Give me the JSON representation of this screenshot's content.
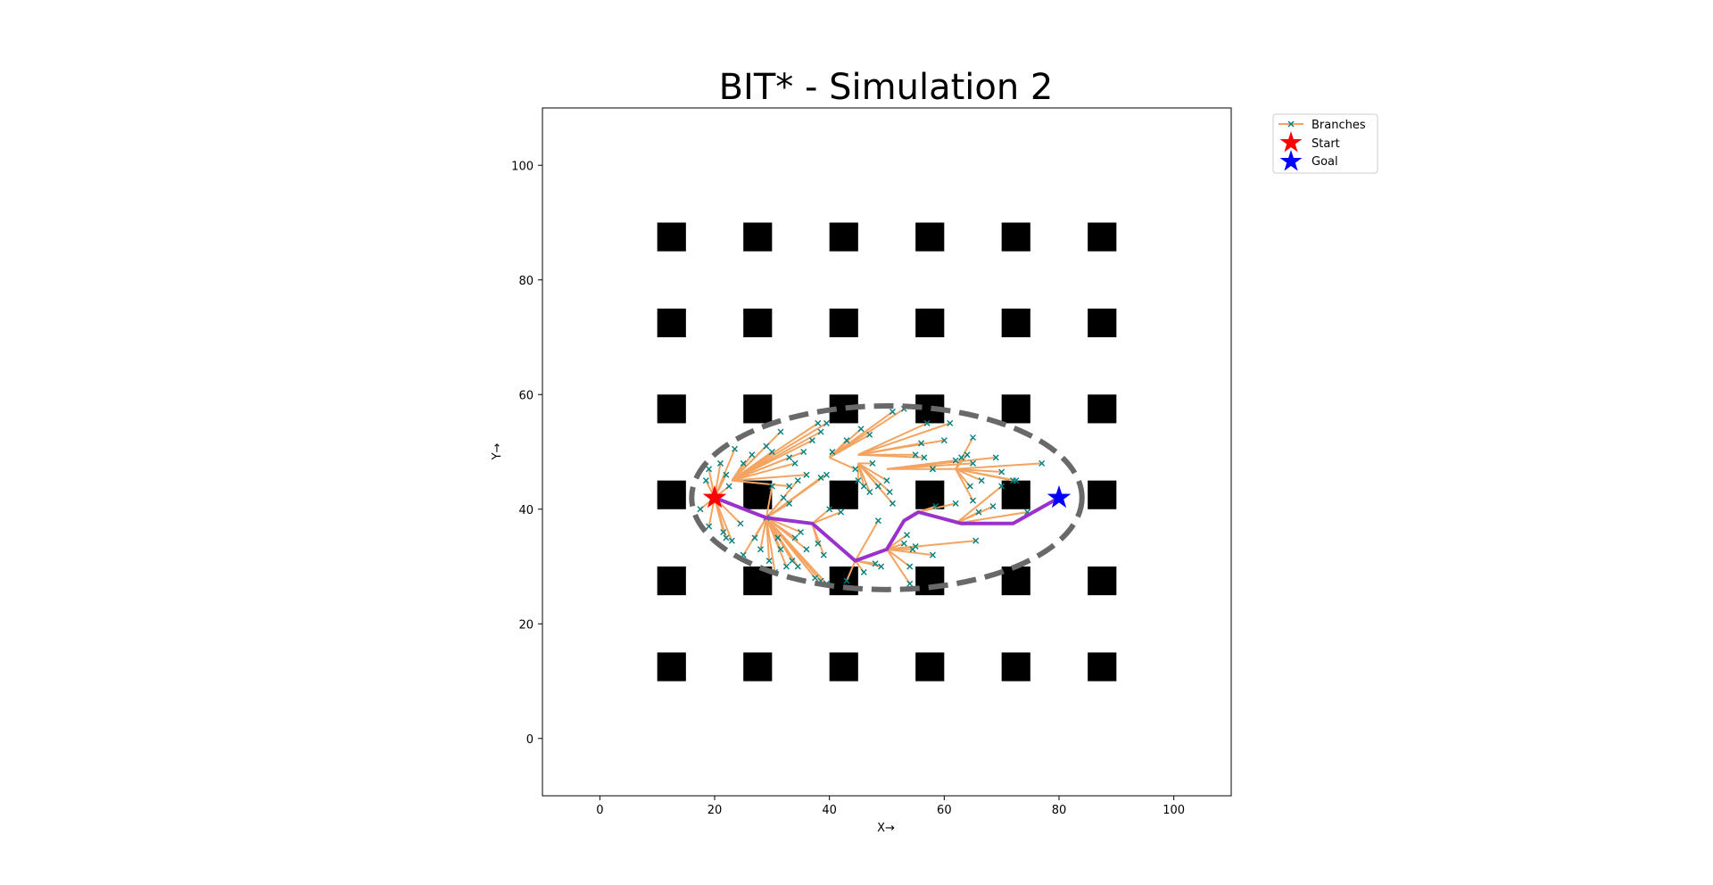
{
  "chart_data": {
    "type": "scatter",
    "title": "BIT* - Simulation 2",
    "xlabel": "X→",
    "ylabel": "Y→",
    "xlim": [
      -10,
      110
    ],
    "ylim": [
      -10,
      110
    ],
    "xticks": [
      0,
      20,
      40,
      60,
      80,
      100
    ],
    "yticks": [
      0,
      20,
      40,
      60,
      80,
      100
    ],
    "grid": false,
    "legend_position": "outside-top-right",
    "colors": {
      "branch": "#f4a460",
      "sample": "#008080",
      "path": "#9932cc",
      "ellipse": "#696969",
      "obstacle": "#000000",
      "start": "#ff0000",
      "goal": "#0000ff"
    },
    "legend": [
      {
        "label": "Branches",
        "marker": "branch"
      },
      {
        "label": "Start",
        "marker": "start"
      },
      {
        "label": "Goal",
        "marker": "goal"
      }
    ],
    "obstacle_centers_x": [
      12.5,
      27.5,
      42.5,
      57.5,
      72.5,
      87.5
    ],
    "obstacle_centers_y": [
      12.5,
      27.5,
      42.5,
      57.5,
      72.5,
      87.5
    ],
    "obstacle_size": 5,
    "start": [
      20,
      42
    ],
    "goal": [
      80,
      42
    ],
    "ellipse": {
      "center": [
        50,
        42
      ],
      "rx": 34,
      "ry": 16
    },
    "path": [
      [
        20,
        42
      ],
      [
        29,
        38.5
      ],
      [
        37,
        37.5
      ],
      [
        44.5,
        31
      ],
      [
        50,
        33
      ],
      [
        53,
        38
      ],
      [
        55.5,
        39.5
      ],
      [
        63,
        37.5
      ],
      [
        72,
        37.5
      ],
      [
        80,
        42
      ]
    ],
    "branches": [
      [
        [
          20,
          42
        ],
        [
          18.5,
          45
        ]
      ],
      [
        [
          20,
          42
        ],
        [
          19,
          47
        ]
      ],
      [
        [
          20,
          42
        ],
        [
          21,
          48
        ]
      ],
      [
        [
          20,
          42
        ],
        [
          23.5,
          50.5
        ]
      ],
      [
        [
          20,
          42
        ],
        [
          22,
          46
        ]
      ],
      [
        [
          20,
          42
        ],
        [
          22.5,
          44
        ]
      ],
      [
        [
          20,
          42
        ],
        [
          17.5,
          40
        ]
      ],
      [
        [
          20,
          42
        ],
        [
          19,
          37
        ]
      ],
      [
        [
          20,
          42
        ],
        [
          22,
          35
        ]
      ],
      [
        [
          20,
          42
        ],
        [
          23,
          34.5
        ]
      ],
      [
        [
          20,
          42
        ],
        [
          21.5,
          36
        ]
      ],
      [
        [
          20,
          42
        ],
        [
          24.5,
          37.5
        ]
      ],
      [
        [
          20,
          42
        ],
        [
          29,
          38.5
        ]
      ],
      [
        [
          23,
          45
        ],
        [
          25,
          48
        ]
      ],
      [
        [
          23,
          45
        ],
        [
          26.5,
          49.5
        ]
      ],
      [
        [
          23,
          45
        ],
        [
          29,
          51
        ]
      ],
      [
        [
          23,
          45
        ],
        [
          30,
          50
        ]
      ],
      [
        [
          23,
          45
        ],
        [
          31.5,
          53.5
        ]
      ],
      [
        [
          23,
          45
        ],
        [
          33,
          49
        ]
      ],
      [
        [
          23,
          45
        ],
        [
          34,
          48
        ]
      ],
      [
        [
          23,
          45
        ],
        [
          35.5,
          50
        ]
      ],
      [
        [
          23,
          45
        ],
        [
          37,
          52
        ]
      ],
      [
        [
          23,
          45
        ],
        [
          38,
          55
        ]
      ],
      [
        [
          23,
          45
        ],
        [
          38.5,
          53.5
        ]
      ],
      [
        [
          23,
          45
        ],
        [
          39.5,
          55
        ]
      ],
      [
        [
          23,
          45
        ],
        [
          36,
          46
        ]
      ],
      [
        [
          23,
          45
        ],
        [
          33,
          44
        ]
      ],
      [
        [
          29,
          38.5
        ],
        [
          30,
          44
        ]
      ],
      [
        [
          29,
          38.5
        ],
        [
          32,
          42
        ]
      ],
      [
        [
          29,
          38.5
        ],
        [
          33,
          41
        ]
      ],
      [
        [
          29,
          38.5
        ],
        [
          34.5,
          45
        ]
      ],
      [
        [
          29,
          38.5
        ],
        [
          38.5,
          45.5
        ]
      ],
      [
        [
          29,
          38.5
        ],
        [
          39.5,
          46
        ]
      ],
      [
        [
          29,
          38.5
        ],
        [
          27,
          35
        ]
      ],
      [
        [
          29,
          38.5
        ],
        [
          28,
          33
        ]
      ],
      [
        [
          29,
          38.5
        ],
        [
          29.5,
          31
        ]
      ],
      [
        [
          29,
          38.5
        ],
        [
          30.5,
          29
        ]
      ],
      [
        [
          29,
          38.5
        ],
        [
          31.5,
          33
        ]
      ],
      [
        [
          29,
          38.5
        ],
        [
          32.5,
          30
        ]
      ],
      [
        [
          29,
          38.5
        ],
        [
          33.5,
          31
        ]
      ],
      [
        [
          29,
          38.5
        ],
        [
          34,
          35
        ]
      ],
      [
        [
          29,
          38.5
        ],
        [
          35,
          36
        ]
      ],
      [
        [
          29,
          38.5
        ],
        [
          36,
          33
        ]
      ],
      [
        [
          29,
          38.5
        ],
        [
          37.5,
          28
        ]
      ],
      [
        [
          29,
          38.5
        ],
        [
          38.5,
          27.5
        ]
      ],
      [
        [
          29,
          38.5
        ],
        [
          39.5,
          27
        ]
      ],
      [
        [
          29,
          38.5
        ],
        [
          34.5,
          30
        ]
      ],
      [
        [
          29,
          38.5
        ],
        [
          31,
          35
        ]
      ],
      [
        [
          29,
          38.5
        ],
        [
          25,
          32
        ]
      ],
      [
        [
          37,
          37.5
        ],
        [
          40,
          40
        ]
      ],
      [
        [
          37,
          37.5
        ],
        [
          38,
          34
        ]
      ],
      [
        [
          37,
          37.5
        ],
        [
          39,
          32
        ]
      ],
      [
        [
          37,
          37.5
        ],
        [
          42,
          39.5
        ]
      ],
      [
        [
          44.5,
          31
        ],
        [
          43,
          27.5
        ]
      ],
      [
        [
          44.5,
          31
        ],
        [
          46,
          29
        ]
      ],
      [
        [
          44.5,
          31
        ],
        [
          48,
          30.5
        ]
      ],
      [
        [
          44.5,
          31
        ],
        [
          49,
          30
        ]
      ],
      [
        [
          44.5,
          31
        ],
        [
          48.5,
          38
        ]
      ],
      [
        [
          50,
          33
        ],
        [
          53,
          34
        ]
      ],
      [
        [
          50,
          33
        ],
        [
          54.5,
          33
        ]
      ],
      [
        [
          50,
          33
        ],
        [
          55,
          33.5
        ]
      ],
      [
        [
          50,
          33
        ],
        [
          53.5,
          35.5
        ]
      ],
      [
        [
          50,
          33
        ],
        [
          58,
          32
        ]
      ],
      [
        [
          50,
          33
        ],
        [
          65.5,
          34.5
        ]
      ],
      [
        [
          50,
          33
        ],
        [
          54,
          30
        ]
      ],
      [
        [
          50,
          33
        ],
        [
          54,
          27
        ]
      ],
      [
        [
          40,
          49
        ],
        [
          43,
          52
        ]
      ],
      [
        [
          40,
          49
        ],
        [
          45.5,
          54
        ]
      ],
      [
        [
          40,
          49
        ],
        [
          51,
          57
        ]
      ],
      [
        [
          40,
          49
        ],
        [
          53,
          57.5
        ]
      ],
      [
        [
          40,
          49
        ],
        [
          44.5,
          47
        ]
      ],
      [
        [
          40,
          49
        ],
        [
          47,
          53
        ]
      ],
      [
        [
          40,
          49
        ],
        [
          40.5,
          50
        ]
      ],
      [
        [
          45,
          49.5
        ],
        [
          56,
          51.5
        ]
      ],
      [
        [
          45,
          49.5
        ],
        [
          60,
          52
        ]
      ],
      [
        [
          45,
          49.5
        ],
        [
          56.5,
          49
        ]
      ],
      [
        [
          45,
          49.5
        ],
        [
          57,
          55
        ]
      ],
      [
        [
          45,
          49.5
        ],
        [
          61,
          55
        ]
      ],
      [
        [
          45,
          49.5
        ],
        [
          55,
          49.5
        ]
      ],
      [
        [
          45,
          48
        ],
        [
          45,
          45
        ]
      ],
      [
        [
          45,
          48
        ],
        [
          46,
          44
        ]
      ],
      [
        [
          45,
          48
        ],
        [
          47,
          43
        ]
      ],
      [
        [
          45,
          48
        ],
        [
          48.5,
          44
        ]
      ],
      [
        [
          45,
          48
        ],
        [
          50,
          45
        ]
      ],
      [
        [
          45,
          48
        ],
        [
          50.5,
          43
        ]
      ],
      [
        [
          45,
          48
        ],
        [
          51,
          41
        ]
      ],
      [
        [
          45,
          48
        ],
        [
          47.5,
          48
        ]
      ],
      [
        [
          50,
          47
        ],
        [
          58,
          47
        ]
      ],
      [
        [
          50,
          47
        ],
        [
          62,
          48.5
        ]
      ],
      [
        [
          50,
          47
        ],
        [
          65,
          48
        ]
      ],
      [
        [
          50,
          47
        ],
        [
          69,
          49
        ]
      ],
      [
        [
          62,
          47
        ],
        [
          64.5,
          44
        ]
      ],
      [
        [
          62,
          47
        ],
        [
          65,
          41.5
        ]
      ],
      [
        [
          62,
          47
        ],
        [
          66.5,
          45
        ]
      ],
      [
        [
          62,
          47
        ],
        [
          70,
          46.5
        ]
      ],
      [
        [
          62,
          47
        ],
        [
          72,
          45
        ]
      ],
      [
        [
          62,
          47
        ],
        [
          72.5,
          45
        ]
      ],
      [
        [
          62,
          47
        ],
        [
          77,
          48
        ]
      ],
      [
        [
          62,
          47
        ],
        [
          63,
          49
        ]
      ],
      [
        [
          62,
          47
        ],
        [
          64,
          49.5
        ]
      ],
      [
        [
          62,
          47
        ],
        [
          65,
          52.5
        ]
      ],
      [
        [
          62,
          47
        ],
        [
          58,
          47
        ]
      ],
      [
        [
          62,
          37.5
        ],
        [
          66,
          39.5
        ]
      ],
      [
        [
          62,
          37.5
        ],
        [
          68.5,
          40.5
        ]
      ],
      [
        [
          62,
          37.5
        ],
        [
          70,
          44
        ]
      ],
      [
        [
          62,
          37.5
        ],
        [
          74.5,
          39.5
        ]
      ],
      [
        [
          55.5,
          39.5
        ],
        [
          58.5,
          40.5
        ]
      ],
      [
        [
          55.5,
          39.5
        ],
        [
          62,
          41
        ]
      ]
    ]
  }
}
